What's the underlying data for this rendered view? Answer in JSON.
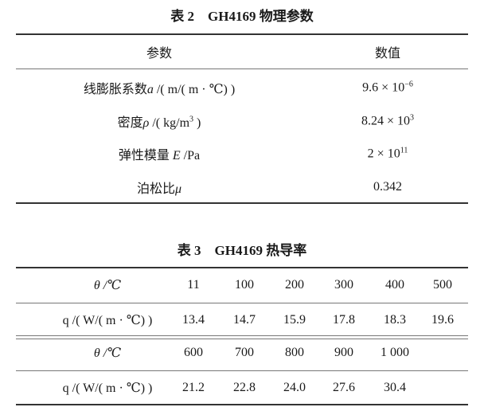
{
  "table2": {
    "caption": "表 2　GH4169 物理参数",
    "headers": [
      "参数",
      "数值"
    ],
    "rows": [
      {
        "param": "线膨胀系数",
        "symbol": "a",
        "unit": " /( m/( m · ℃) )",
        "value_base": "9.6 × 10",
        "value_exp": "−6"
      },
      {
        "param": "密度",
        "symbol": "ρ",
        "unit": " /( kg/m",
        "unit_exp": "3",
        "unit_end": " )",
        "value_base": "8.24 × 10",
        "value_exp": "3"
      },
      {
        "param": "弹性模量 ",
        "symbol": "E",
        "unit": " /Pa",
        "value_base": "2 × 10",
        "value_exp": "11"
      },
      {
        "param": "泊松比",
        "symbol": "μ",
        "unit": "",
        "value_base": "0.342",
        "value_exp": ""
      }
    ]
  },
  "table3": {
    "caption": "表 3　GH4169 热导率",
    "theta_label": "θ /℃",
    "q_label": "q /( W/( m · ℃) )",
    "block1": {
      "theta": [
        "11",
        "100",
        "200",
        "300",
        "400",
        "500"
      ],
      "q": [
        "13.4",
        "14.7",
        "15.9",
        "17.8",
        "18.3",
        "19.6"
      ]
    },
    "block2": {
      "theta": [
        "600",
        "700",
        "800",
        "900",
        "1 000"
      ],
      "q": [
        "21.2",
        "22.8",
        "24.0",
        "27.6",
        "30.4"
      ]
    }
  }
}
